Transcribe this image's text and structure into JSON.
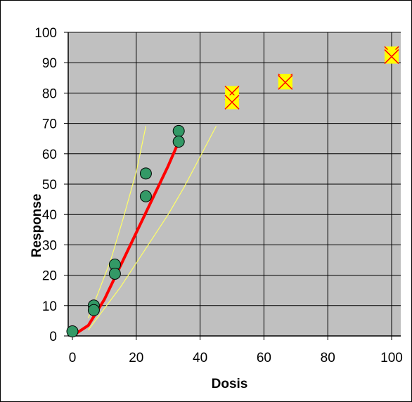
{
  "chart_data": {
    "type": "scatter",
    "title": "",
    "xlabel": "Dosis",
    "ylabel": "Response",
    "xlim": [
      0,
      100
    ],
    "ylim": [
      0,
      100
    ],
    "x_ticks": [
      "0",
      "20",
      "40",
      "60",
      "80",
      "100"
    ],
    "y_ticks": [
      "0",
      "10",
      "20",
      "30",
      "40",
      "50",
      "60",
      "70",
      "80",
      "90",
      "100"
    ],
    "grid": true,
    "plot_background": "#C0C0C0",
    "series": [
      {
        "kind": "points",
        "marker": "circle",
        "color": "#339966",
        "points": [
          [
            0,
            1.5
          ],
          [
            6.7,
            10
          ],
          [
            6.7,
            8.5
          ],
          [
            13.3,
            23.5
          ],
          [
            13.3,
            20.5
          ],
          [
            23,
            53.5
          ],
          [
            23,
            46
          ],
          [
            33.3,
            67.5
          ],
          [
            33.3,
            64
          ]
        ]
      },
      {
        "kind": "points",
        "marker": "x-box",
        "color": "#FFFF00",
        "edge_color": "#FF0000",
        "points": [
          [
            50,
            80
          ],
          [
            50,
            77
          ],
          [
            66.7,
            84
          ],
          [
            66.7,
            83.5
          ],
          [
            100,
            93
          ],
          [
            100,
            92
          ]
        ]
      },
      {
        "kind": "line",
        "color": "#FF0000",
        "points": [
          [
            0,
            0
          ],
          [
            5,
            3.5
          ],
          [
            10,
            12
          ],
          [
            15,
            23
          ],
          [
            20,
            34
          ],
          [
            25,
            45
          ],
          [
            30,
            56
          ],
          [
            33.3,
            64
          ]
        ]
      },
      {
        "kind": "line",
        "color": "#FFFF66",
        "points": [
          [
            5,
            6
          ],
          [
            8,
            14
          ],
          [
            12,
            25
          ],
          [
            16,
            39
          ],
          [
            20,
            54
          ],
          [
            23,
            69
          ]
        ]
      },
      {
        "kind": "line",
        "color": "#FFFF66",
        "points": [
          [
            5,
            2
          ],
          [
            10,
            9
          ],
          [
            15,
            16
          ],
          [
            20,
            24
          ],
          [
            25,
            32
          ],
          [
            30,
            40
          ],
          [
            35,
            49
          ],
          [
            40,
            59
          ],
          [
            45,
            69
          ]
        ]
      }
    ]
  }
}
